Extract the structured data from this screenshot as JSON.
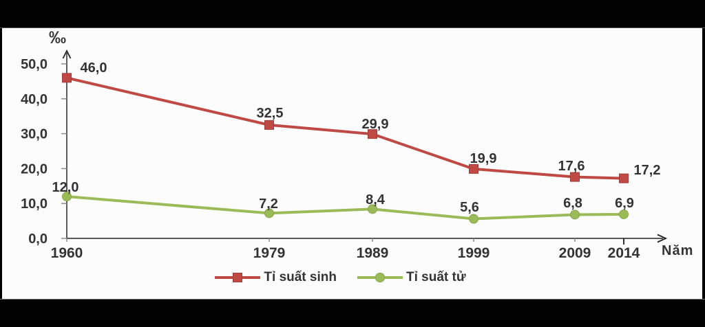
{
  "chart_data": {
    "type": "line",
    "title": "",
    "unit_label": "‰",
    "x_axis_title": "Năm",
    "categories": [
      "1960",
      "1979",
      "1989",
      "1999",
      "2009",
      "2014"
    ],
    "x_values": [
      1960,
      1979,
      1989,
      1999,
      2009,
      2014
    ],
    "y_axis": {
      "min": 0,
      "max": 50,
      "tick_step": 10,
      "tick_labels": [
        "0,0",
        "10,0",
        "20,0",
        "30,0",
        "40,0",
        "50,0"
      ]
    },
    "series": [
      {
        "name": "Tỉ suất sinh",
        "marker": "square",
        "color": "#bf4a45",
        "marker_edge_color": "#a23c38",
        "values": [
          46.0,
          32.5,
          29.9,
          19.9,
          17.6,
          17.2
        ],
        "value_labels": [
          "46,0",
          "32,5",
          "29,9",
          "19,9",
          "17,6",
          "17,2"
        ]
      },
      {
        "name": "Tỉ suất tử",
        "marker": "circle",
        "color": "#9bbb59",
        "marker_edge_color": "#86a648",
        "values": [
          12.0,
          7.2,
          8.4,
          5.6,
          6.8,
          6.9
        ],
        "value_labels": [
          "12,0",
          "7,2",
          "8,4",
          "5,6",
          "6,8",
          "6,9"
        ]
      }
    ],
    "legend_position": "bottom",
    "grid": false,
    "text_color": "#333333",
    "axis_color": "#3f3f3f",
    "tick_color": "#8c8c8c"
  }
}
